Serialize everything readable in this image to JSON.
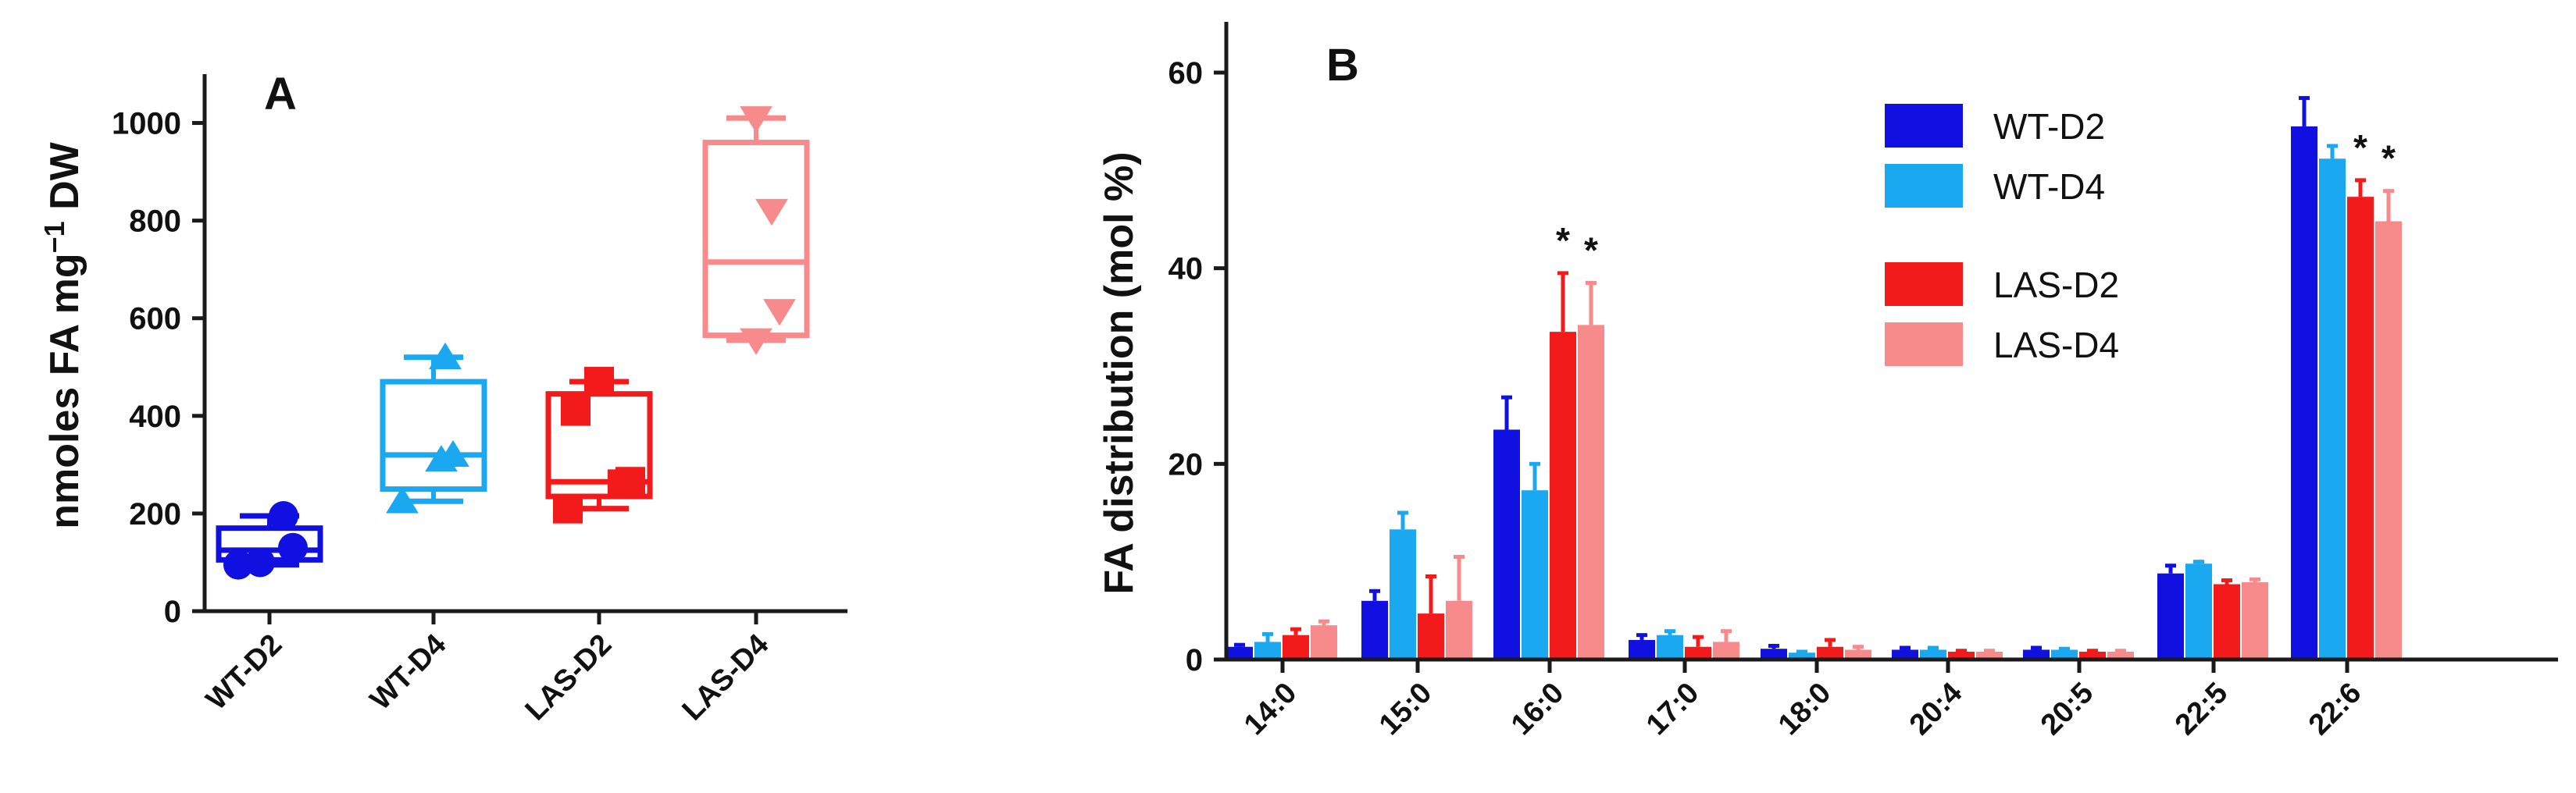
{
  "chart_data": [
    {
      "panel": "A",
      "type": "box",
      "ylabel_main": "nmoles FA mg",
      "ylabel_sup": "−1",
      "ylabel_tail": " DW",
      "ylim": [
        0,
        1100
      ],
      "yticks": [
        "0",
        "200",
        "400",
        "600",
        "800",
        "1000"
      ],
      "ytick_values": [
        0,
        200,
        400,
        600,
        800,
        1000
      ],
      "categories": [
        "WT-D2",
        "WT-D4",
        "LAS-D2",
        "LAS-D4"
      ],
      "colors": [
        "#1010e0",
        "#1aa8f0",
        "#f21a1a",
        "#f78b8b"
      ],
      "markers": [
        "circle",
        "triangle-up",
        "square",
        "triangle-down"
      ],
      "boxes": [
        {
          "min": 95,
          "q1": 105,
          "median": 125,
          "q3": 170,
          "max": 195,
          "points": [
            95,
            100,
            130,
            195
          ]
        },
        {
          "min": 225,
          "q1": 250,
          "median": 320,
          "q3": 470,
          "max": 520,
          "points": [
            225,
            310,
            320,
            520
          ]
        },
        {
          "min": 210,
          "q1": 235,
          "median": 265,
          "q3": 445,
          "max": 470,
          "points": [
            210,
            260,
            265,
            410,
            470
          ]
        },
        {
          "min": 555,
          "q1": 565,
          "median": 715,
          "q3": 960,
          "max": 1010,
          "points": [
            555,
            615,
            820,
            1010
          ]
        }
      ]
    },
    {
      "panel": "B",
      "type": "bar",
      "ylabel": "FA distribution (mol %)",
      "ylim": [
        0,
        65
      ],
      "yticks": [
        "0",
        "20",
        "40",
        "60"
      ],
      "ytick_values": [
        0,
        20,
        40,
        60
      ],
      "categories": [
        "14:0",
        "15:0",
        "16:0",
        "17:0",
        "18:0",
        "20:4",
        "20:5",
        "22:5",
        "22:6"
      ],
      "series": [
        {
          "name": "WT-D2",
          "color": "#1010e0",
          "values": [
            1.3,
            6.0,
            23.5,
            2.0,
            1.1,
            1.0,
            1.0,
            8.8,
            54.5
          ],
          "errors": [
            0.2,
            1.0,
            3.3,
            0.5,
            0.3,
            0.2,
            0.2,
            0.8,
            2.9
          ],
          "signif": [
            "",
            "",
            "",
            "",
            "",
            "",
            "",
            "",
            ""
          ]
        },
        {
          "name": "WT-D4",
          "color": "#1aa8f0",
          "values": [
            1.8,
            13.3,
            17.3,
            2.5,
            0.7,
            1.0,
            1.0,
            9.8,
            51.2
          ],
          "errors": [
            0.8,
            1.7,
            2.7,
            0.4,
            0.1,
            0.2,
            0.1,
            0.2,
            1.3
          ],
          "signif": [
            "",
            "",
            "",
            "",
            "",
            "",
            "",
            "",
            ""
          ]
        },
        {
          "name": "LAS-D2",
          "color": "#f21a1a",
          "values": [
            2.5,
            4.7,
            33.5,
            1.3,
            1.3,
            0.8,
            0.8,
            7.7,
            47.3
          ],
          "errors": [
            0.6,
            3.8,
            6.0,
            1.0,
            0.7,
            0.1,
            0.1,
            0.4,
            1.7
          ],
          "signif": [
            "",
            "",
            "*",
            "",
            "",
            "",
            "",
            "",
            "*"
          ]
        },
        {
          "name": "LAS-D4",
          "color": "#f78b8b",
          "values": [
            3.5,
            6.0,
            34.2,
            1.8,
            1.0,
            0.8,
            0.8,
            7.9,
            44.8
          ],
          "errors": [
            0.4,
            4.5,
            4.3,
            1.1,
            0.3,
            0.1,
            0.1,
            0.3,
            3.1
          ],
          "signif": [
            "",
            "",
            "*",
            "",
            "",
            "",
            "",
            "",
            "*"
          ]
        }
      ],
      "legend": [
        "WT-D2",
        "WT-D4",
        "LAS-D2",
        "LAS-D4"
      ]
    }
  ]
}
